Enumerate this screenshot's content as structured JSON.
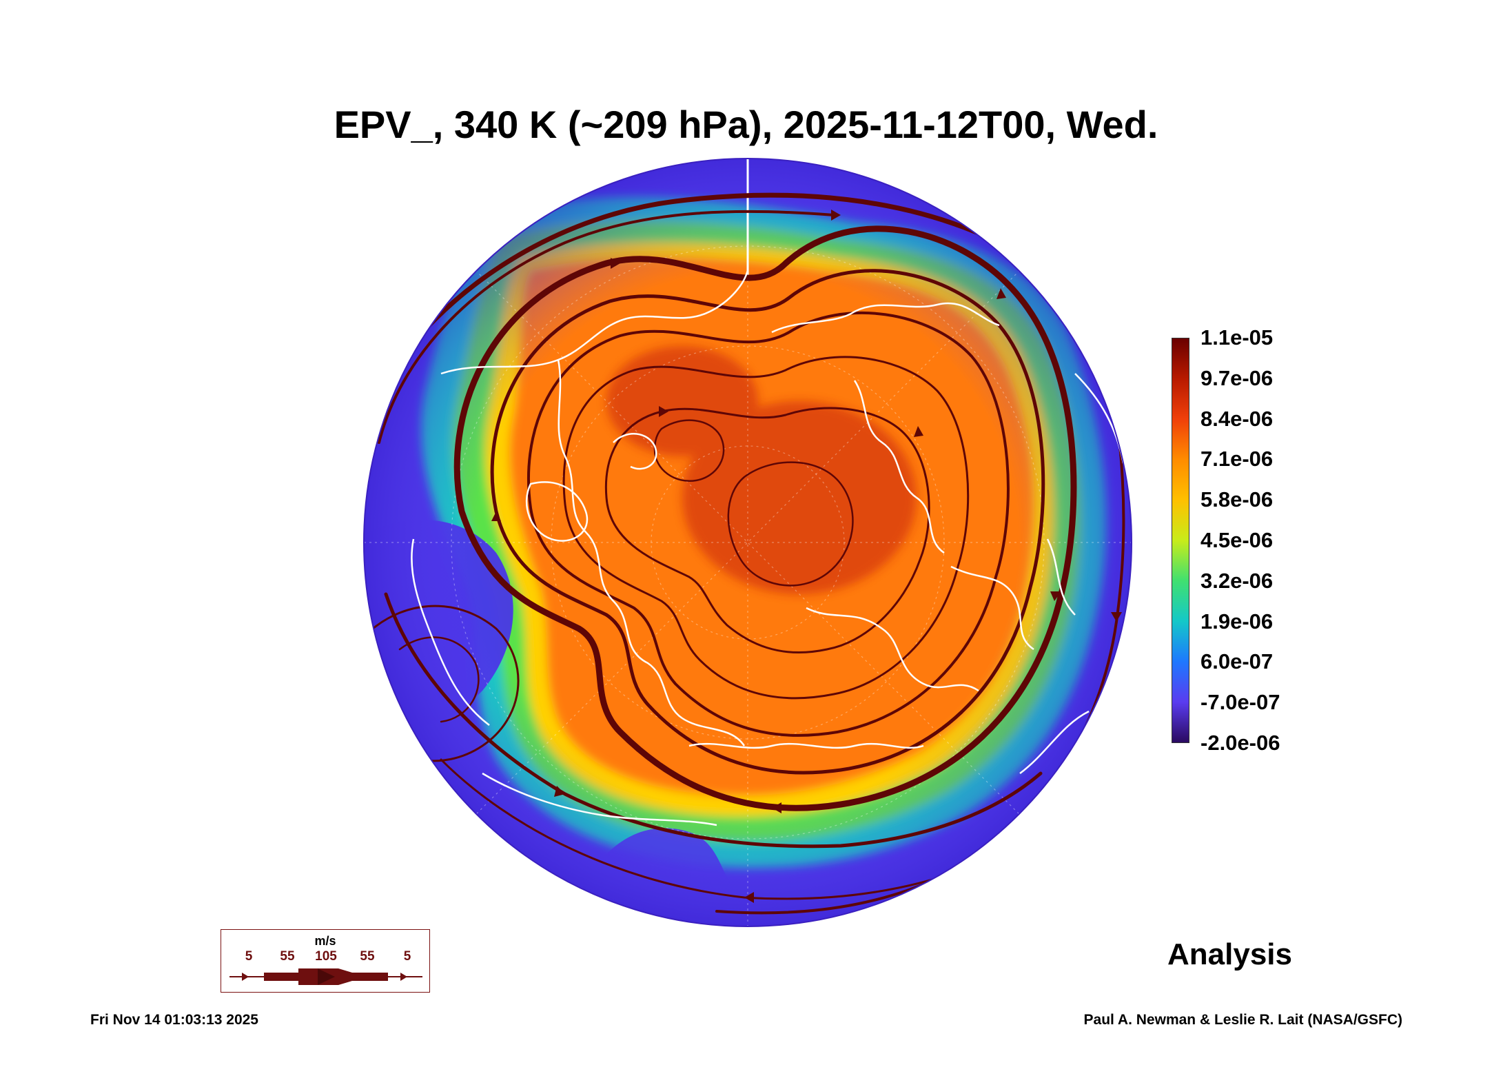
{
  "title": "EPV_, 340 K (~209 hPa), 2025-11-12T00, Wed.",
  "colorbar": {
    "ticks": [
      "1.1e-05",
      "9.7e-06",
      "8.4e-06",
      "7.1e-06",
      "5.8e-06",
      "4.5e-06",
      "3.2e-06",
      "1.9e-06",
      "6.0e-07",
      "-7.0e-07",
      "-2.0e-06"
    ],
    "colors": [
      "#6a0000",
      "#b81a00",
      "#f0400a",
      "#ff8c00",
      "#ffc000",
      "#c8ec1a",
      "#40e070",
      "#14c8c8",
      "#1e78ff",
      "#5a3cf0",
      "#2a0a60"
    ]
  },
  "label": "Analysis",
  "wind_legend": {
    "unit": "m/s",
    "values": [
      "5",
      "55",
      "105",
      "55",
      "5"
    ]
  },
  "footer": {
    "timestamp": "Fri Nov 14 01:03:13 2025",
    "credit": "Paul A. Newman & Leslie R. Lait (NASA/GSFC)"
  },
  "map": {
    "projection": "north polar stereographic",
    "field": "Ertel potential vorticity",
    "background_color": "#4a36e6",
    "high_color": "#ff7a10",
    "streamline_color": "#5e0606",
    "coastline_color": "#ffffff"
  }
}
